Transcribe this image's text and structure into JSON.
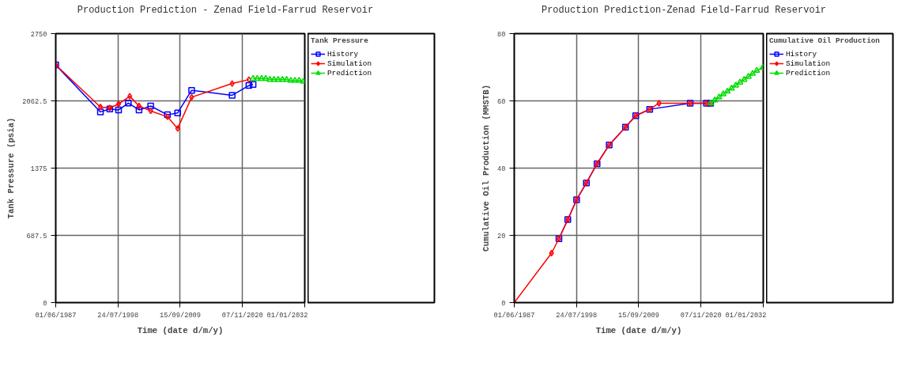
{
  "chart_data": [
    {
      "type": "line",
      "title": "Production Prediction - Zenad Field-Farrud Reservoir",
      "xlabel": "Time (date d/m/y)",
      "ylabel": "Tank Pressure (psia)",
      "legend_title": "Tank Pressure",
      "legend": "right",
      "grid": true,
      "xlim": [
        "1987-06-01",
        "2032-01-01"
      ],
      "xticks": [
        {
          "value": "1987-06-01",
          "label": "01/06/1987"
        },
        {
          "value": "1998-07-24",
          "label": "24/07/1998"
        },
        {
          "value": "2009-09-15",
          "label": "15/09/2009"
        },
        {
          "value": "2020-11-07",
          "label": "07/11/2020"
        },
        {
          "value": "2032-01-01",
          "label": "01/01/2032"
        }
      ],
      "ylim": [
        0,
        2750
      ],
      "yticks": [
        0,
        687.5,
        1375,
        2062.5,
        2750
      ],
      "series": [
        {
          "name": "History",
          "color": "#0000ff",
          "marker": "square",
          "x": [
            "1987-06",
            "1995-06",
            "1997-02",
            "1998-09",
            "2000-06",
            "2002-05",
            "2004-06",
            "2007-06",
            "2009-04",
            "2011-10",
            "2019-01",
            "2022-01",
            "2022-10"
          ],
          "values": [
            2430,
            1950,
            1980,
            1970,
            2040,
            1970,
            2010,
            1920,
            1940,
            2170,
            2120,
            2220,
            2230
          ]
        },
        {
          "name": "Simulation",
          "color": "#ff0000",
          "marker": "diamond",
          "x": [
            "1987-06",
            "1995-06",
            "1997-02",
            "1998-09",
            "2000-09",
            "2002-05",
            "2004-06",
            "2007-06",
            "2009-04",
            "2011-10",
            "2019-01",
            "2022-01"
          ],
          "values": [
            2430,
            2000,
            1990,
            2030,
            2110,
            2010,
            1960,
            1900,
            1780,
            2100,
            2240,
            2280
          ]
        },
        {
          "name": "Prediction",
          "color": "#00dd00",
          "marker": "triangle",
          "x": [
            "2022-10",
            "2023-07",
            "2024-04",
            "2025-01",
            "2025-10",
            "2026-07",
            "2027-04",
            "2028-01",
            "2028-10",
            "2029-07",
            "2030-04",
            "2031-01",
            "2031-10"
          ],
          "values": [
            2290,
            2290,
            2290,
            2290,
            2280,
            2280,
            2280,
            2280,
            2280,
            2270,
            2270,
            2270,
            2260
          ]
        }
      ]
    },
    {
      "type": "line",
      "title": "Production Prediction-Zenad Field-Farrud Reservoir",
      "xlabel": "Time (date d/m/y)",
      "ylabel": "Cumulative Oil Production (MMSTB)",
      "legend_title": "Cumulative Oil Production",
      "legend": "right",
      "grid": true,
      "xlim": [
        "1987-06-01",
        "2032-01-01"
      ],
      "xticks": [
        {
          "value": "1987-06-01",
          "label": "01/06/1987"
        },
        {
          "value": "1998-07-24",
          "label": "24/07/1998"
        },
        {
          "value": "2009-09-15",
          "label": "15/09/2009"
        },
        {
          "value": "2020-11-07",
          "label": "07/11/2020"
        },
        {
          "value": "2032-01-01",
          "label": "01/01/2032"
        }
      ],
      "ylim": [
        0,
        80
      ],
      "yticks": [
        0,
        20,
        40,
        60,
        80
      ],
      "series": [
        {
          "name": "History",
          "color": "#0000ff",
          "marker": "square",
          "x": [
            "1995-06",
            "1997-01",
            "1998-08",
            "2000-05",
            "2002-04",
            "2004-06",
            "2007-05",
            "2009-03",
            "2011-09",
            "2018-12",
            "2021-11",
            "2022-08"
          ],
          "values": [
            19.0,
            24.7,
            30.6,
            35.6,
            41.3,
            46.9,
            52.2,
            55.6,
            57.5,
            59.3,
            59.3,
            59.3
          ]
        },
        {
          "name": "Simulation",
          "color": "#ff0000",
          "marker": "diamond",
          "x": [
            "1987-06",
            "1994-02",
            "1995-06",
            "1997-01",
            "1998-08",
            "2000-05",
            "2002-04",
            "2004-06",
            "2007-05",
            "2009-03",
            "2011-09",
            "2013-05",
            "2018-12",
            "2021-11",
            "2022-08"
          ],
          "values": [
            0,
            14.7,
            19.0,
            24.7,
            30.6,
            35.6,
            41.3,
            46.9,
            52.2,
            55.6,
            57.5,
            59.3,
            59.3,
            59.3,
            59.3
          ]
        },
        {
          "name": "Prediction",
          "color": "#00dd00",
          "marker": "triangle",
          "x": [
            "2022-08",
            "2023-05",
            "2024-02",
            "2024-11",
            "2025-08",
            "2026-05",
            "2027-02",
            "2027-11",
            "2028-08",
            "2029-05",
            "2030-02",
            "2030-11",
            "2031-12"
          ],
          "values": [
            59.3,
            60.2,
            61.1,
            62.0,
            62.8,
            63.7,
            64.6,
            65.5,
            66.3,
            67.2,
            68.1,
            69.0,
            69.9
          ]
        }
      ]
    }
  ]
}
